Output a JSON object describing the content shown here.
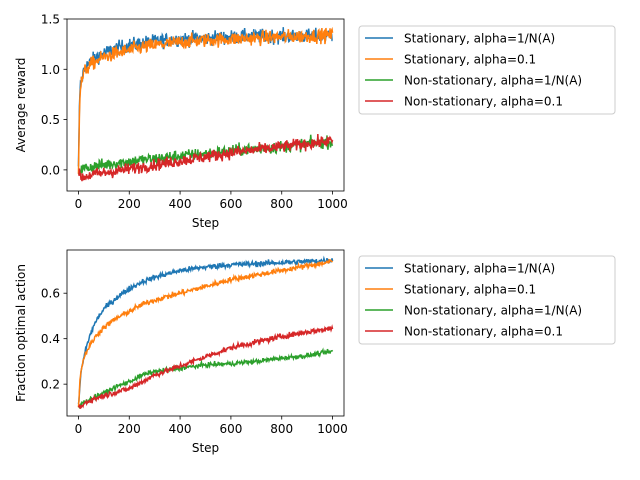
{
  "chart_data": [
    {
      "type": "line",
      "title": "",
      "xlabel": "Step",
      "ylabel": "Average reward",
      "xlim": [
        -45,
        1045
      ],
      "ylim": [
        -0.21,
        1.5
      ],
      "xticks": [
        0,
        200,
        400,
        600,
        800,
        1000
      ],
      "yticks": [
        0.0,
        0.5,
        1.0,
        1.5
      ],
      "ytick_labels": [
        "0.0",
        "0.5",
        "1.0",
        "1.5"
      ],
      "grid": false,
      "legend_position": "outside-right",
      "x": [
        0,
        5,
        10,
        20,
        30,
        50,
        75,
        100,
        150,
        200,
        250,
        300,
        400,
        500,
        600,
        700,
        800,
        900,
        1000
      ],
      "series": [
        {
          "name": "Stationary, alpha=1/N(A)",
          "color": "#1f77b4",
          "values": [
            0.0,
            0.75,
            0.88,
            0.98,
            1.03,
            1.08,
            1.13,
            1.16,
            1.21,
            1.24,
            1.26,
            1.28,
            1.3,
            1.31,
            1.32,
            1.33,
            1.33,
            1.33,
            1.34
          ],
          "noise": 0.035
        },
        {
          "name": "Stationary, alpha=0.1",
          "color": "#ff7f0e",
          "values": [
            0.0,
            0.72,
            0.85,
            0.95,
            1.0,
            1.05,
            1.09,
            1.12,
            1.16,
            1.19,
            1.22,
            1.24,
            1.27,
            1.29,
            1.3,
            1.31,
            1.32,
            1.33,
            1.34
          ],
          "noise": 0.035
        },
        {
          "name": "Non-stationary, alpha=1/N(A)",
          "color": "#2ca02c",
          "values": [
            -0.02,
            -0.01,
            0.0,
            0.01,
            0.02,
            0.03,
            0.04,
            0.05,
            0.07,
            0.08,
            0.1,
            0.11,
            0.14,
            0.16,
            0.19,
            0.21,
            0.23,
            0.26,
            0.28
          ],
          "noise": 0.03
        },
        {
          "name": "Non-stationary, alpha=0.1",
          "color": "#d62728",
          "values": [
            -0.05,
            -0.06,
            -0.07,
            -0.07,
            -0.06,
            -0.05,
            -0.04,
            -0.03,
            -0.01,
            0.01,
            0.03,
            0.05,
            0.09,
            0.13,
            0.17,
            0.2,
            0.23,
            0.26,
            0.29
          ],
          "noise": 0.03
        }
      ]
    },
    {
      "type": "line",
      "title": "",
      "xlabel": "Step",
      "ylabel": "Fraction optimal action",
      "xlim": [
        -45,
        1045
      ],
      "ylim": [
        0.06,
        0.79
      ],
      "xticks": [
        0,
        200,
        400,
        600,
        800,
        1000
      ],
      "yticks": [
        0.2,
        0.4,
        0.6
      ],
      "ytick_labels": [
        "0.2",
        "0.4",
        "0.6"
      ],
      "grid": false,
      "legend_position": "outside-right",
      "x": [
        0,
        5,
        10,
        20,
        30,
        50,
        75,
        100,
        150,
        200,
        250,
        300,
        400,
        500,
        600,
        700,
        800,
        900,
        1000
      ],
      "series": [
        {
          "name": "Stationary, alpha=1/N(A)",
          "color": "#1f77b4",
          "values": [
            0.1,
            0.18,
            0.25,
            0.31,
            0.36,
            0.43,
            0.49,
            0.53,
            0.58,
            0.62,
            0.65,
            0.67,
            0.7,
            0.715,
            0.725,
            0.73,
            0.735,
            0.74,
            0.745
          ],
          "noise": 0.006
        },
        {
          "name": "Stationary, alpha=0.1",
          "color": "#ff7f0e",
          "values": [
            0.1,
            0.2,
            0.26,
            0.31,
            0.34,
            0.38,
            0.42,
            0.45,
            0.49,
            0.52,
            0.55,
            0.57,
            0.6,
            0.63,
            0.66,
            0.68,
            0.7,
            0.72,
            0.74
          ],
          "noise": 0.006
        },
        {
          "name": "Non-stationary, alpha=1/N(A)",
          "color": "#2ca02c",
          "values": [
            0.1,
            0.1,
            0.11,
            0.12,
            0.125,
            0.135,
            0.15,
            0.16,
            0.19,
            0.21,
            0.24,
            0.255,
            0.27,
            0.285,
            0.29,
            0.3,
            0.315,
            0.325,
            0.345
          ],
          "noise": 0.005
        },
        {
          "name": "Non-stationary, alpha=0.1",
          "color": "#d62728",
          "values": [
            0.1,
            0.1,
            0.1,
            0.11,
            0.12,
            0.13,
            0.14,
            0.15,
            0.165,
            0.18,
            0.21,
            0.24,
            0.28,
            0.32,
            0.36,
            0.385,
            0.41,
            0.43,
            0.445
          ],
          "noise": 0.006
        }
      ]
    }
  ]
}
